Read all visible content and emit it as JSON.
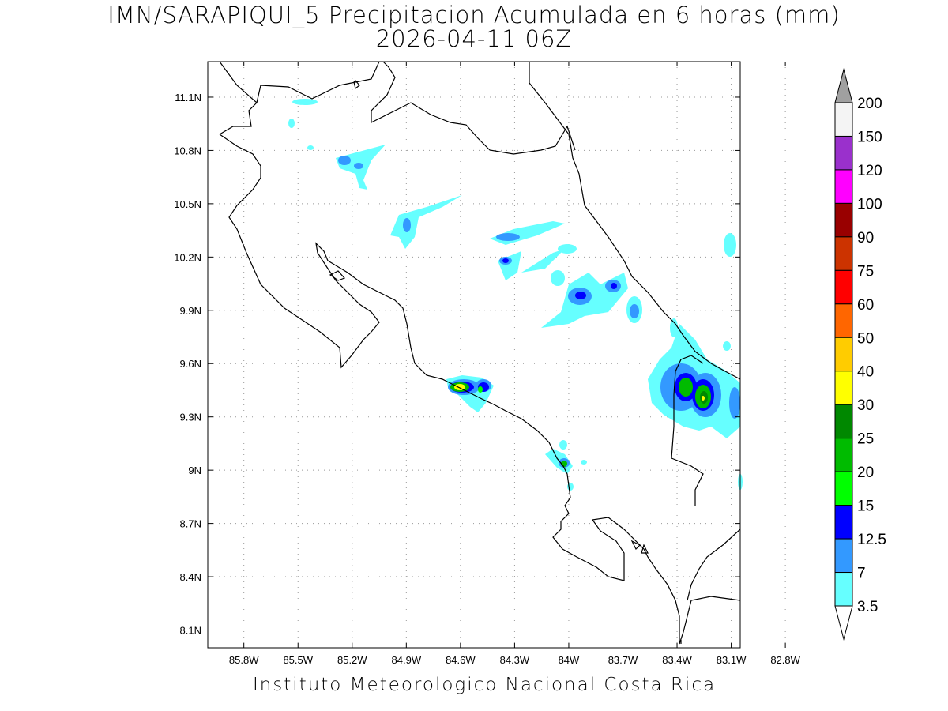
{
  "title_line1": "IMN/SARAPIQUI_5 Precipitacion Acumulada en 6 horas (mm)",
  "title_line2": "2026-04-11 06Z",
  "footer": "Instituto Meteorologico Nacional Costa Rica",
  "map_data": {
    "lon_range": [
      -86.0,
      -83.05
    ],
    "lat_range": [
      8.0,
      11.3
    ],
    "lon_ticks": [
      "85.8W",
      "85.5W",
      "85.2W",
      "84.9W",
      "84.6W",
      "84.3W",
      "84W",
      "83.7W",
      "83.4W",
      "83.1W",
      "82.8W"
    ],
    "lat_ticks": [
      "11.1N",
      "10.8N",
      "10.5N",
      "10.2N",
      "9.9N",
      "9.6N",
      "9.3N",
      "9N",
      "8.7N",
      "8.4N",
      "8.1N"
    ],
    "gridlines": "dotted"
  },
  "colorbar": {
    "labels": [
      "200",
      "150",
      "120",
      "100",
      "90",
      "75",
      "60",
      "50",
      "40",
      "30",
      "25",
      "20",
      "15",
      "12.5",
      "7",
      "3.5"
    ],
    "colors": [
      "#f4f4f4",
      "#9a30cc",
      "#ff00ff",
      "#990000",
      "#cc3300",
      "#ff0000",
      "#ff6600",
      "#ffcc00",
      "#ffff00",
      "#008800",
      "#00bb00",
      "#00ff00",
      "#0000ff",
      "#3399ff",
      "#66ffff"
    ],
    "top_arrow_color": "#a0a0a0",
    "bottom_arrow_color": "#ffffff"
  }
}
